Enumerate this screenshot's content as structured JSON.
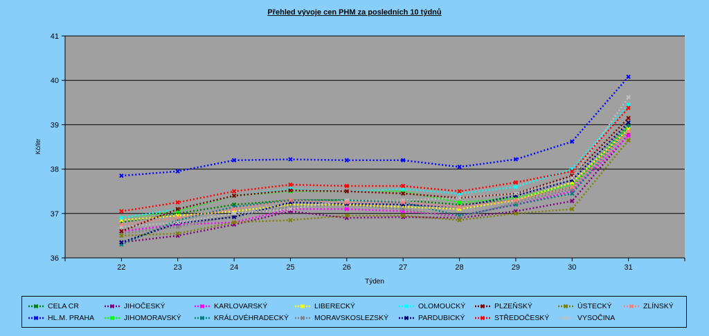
{
  "chart_data": {
    "type": "line",
    "title": "Přehled vývoje cen PHM za posledních 10 týdnů",
    "xlabel": "Týden",
    "ylabel": "Kč/litr",
    "ylim": [
      36,
      41
    ],
    "yticks": [
      "36",
      "37",
      "38",
      "39",
      "40",
      "41"
    ],
    "categories": [
      "22",
      "23",
      "24",
      "25",
      "26",
      "27",
      "28",
      "29",
      "30",
      "31"
    ],
    "grid": true,
    "legend_position": "bottom",
    "series": [
      {
        "name": "CELA CR",
        "color": "#008000",
        "values": [
          36.8,
          37.0,
          37.2,
          37.3,
          37.3,
          37.3,
          37.2,
          37.3,
          37.6,
          39.0
        ]
      },
      {
        "name": "HL.M. PRAHA",
        "color": "#0000FF",
        "values": [
          37.85,
          37.95,
          38.2,
          38.22,
          38.2,
          38.2,
          38.05,
          38.22,
          38.62,
          40.08
        ]
      },
      {
        "name": "JIHOČESKÝ",
        "color": "#800080",
        "values": [
          36.35,
          36.5,
          36.75,
          37.05,
          36.9,
          36.92,
          36.9,
          37.05,
          37.28,
          38.78
        ]
      },
      {
        "name": "JIHOMORAVSKÝ",
        "color": "#00FF00",
        "values": [
          36.9,
          37.05,
          37.4,
          37.5,
          37.5,
          37.5,
          37.25,
          37.35,
          37.65,
          38.95
        ]
      },
      {
        "name": "KARLOVARSKÝ",
        "color": "#FF00FF",
        "values": [
          36.6,
          36.75,
          36.8,
          37.1,
          37.1,
          37.05,
          36.95,
          37.2,
          37.5,
          38.75
        ]
      },
      {
        "name": "KRÁLOVÉHRADECKÝ",
        "color": "#008080",
        "values": [
          36.3,
          36.85,
          37.15,
          37.3,
          37.3,
          37.25,
          36.95,
          37.2,
          37.45,
          38.95
        ]
      },
      {
        "name": "LIBERECKÝ",
        "color": "#FFFF00",
        "values": [
          36.85,
          36.95,
          37.05,
          37.2,
          37.2,
          37.15,
          37.1,
          37.3,
          37.7,
          38.9
        ]
      },
      {
        "name": "MORAVSKOSLEZSKÝ",
        "color": "#808080",
        "values": [
          36.55,
          36.7,
          36.95,
          37.15,
          37.2,
          37.1,
          36.9,
          37.25,
          37.55,
          38.85
        ]
      },
      {
        "name": "OLOMOUCKÝ",
        "color": "#00FFFF",
        "values": [
          36.9,
          37.1,
          37.4,
          37.55,
          37.5,
          37.55,
          37.45,
          37.6,
          38.0,
          39.45
        ]
      },
      {
        "name": "PARDUBICKÝ",
        "color": "#000080",
        "values": [
          36.35,
          36.78,
          36.92,
          37.25,
          37.22,
          37.2,
          37.15,
          37.4,
          37.75,
          39.05
        ]
      },
      {
        "name": "PLZEŇSKÝ",
        "color": "#800000",
        "values": [
          36.6,
          37.1,
          37.4,
          37.52,
          37.5,
          37.45,
          37.35,
          37.45,
          37.85,
          39.15
        ]
      },
      {
        "name": "STŘEDOČESKÝ",
        "color": "#FF0000",
        "values": [
          37.05,
          37.25,
          37.5,
          37.65,
          37.62,
          37.62,
          37.5,
          37.7,
          37.95,
          39.38
        ]
      },
      {
        "name": "ÚSTECKÝ",
        "color": "#808000",
        "values": [
          36.5,
          36.55,
          36.8,
          36.85,
          36.95,
          36.95,
          36.85,
          37.0,
          37.1,
          38.65
        ]
      },
      {
        "name": "VYSOČINA",
        "color": "#C0C0C0",
        "values": [
          36.7,
          36.8,
          37.0,
          37.1,
          37.3,
          37.3,
          37.35,
          37.45,
          37.8,
          39.62
        ]
      },
      {
        "name": "ZLÍNSKÝ",
        "color": "#FF8080",
        "values": [
          36.75,
          36.9,
          37.1,
          37.3,
          37.25,
          37.25,
          37.15,
          37.3,
          37.6,
          38.85
        ]
      }
    ]
  }
}
